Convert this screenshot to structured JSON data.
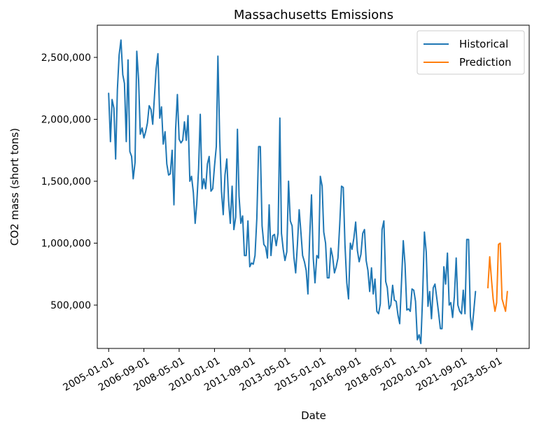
{
  "chart_data": {
    "type": "line",
    "title": "Massachusetts Emissions",
    "xlabel": "Date",
    "ylabel": "CO2 mass (short tons)",
    "x_ticks": [
      "2005-01-01",
      "2006-09-01",
      "2008-05-01",
      "2010-01-01",
      "2011-09-01",
      "2013-05-01",
      "2015-01-01",
      "2016-09-01",
      "2018-05-01",
      "2020-01-01",
      "2021-09-01",
      "2023-05-01"
    ],
    "y_ticks": [
      500000,
      1000000,
      1500000,
      2000000,
      2500000
    ],
    "y_tick_labels": [
      "500,000",
      "1,000,000",
      "1,500,000",
      "2,000,000",
      "2,500,000"
    ],
    "xlim": [
      "2004-06-19",
      "2024-11-12"
    ],
    "ylim": [
      150000,
      2760000
    ],
    "grid": false,
    "legend_position": "top-right",
    "series": [
      {
        "name": "Historical",
        "color": "#1f77b4",
        "start": "2005-01",
        "values": [
          2210000,
          1820000,
          2160000,
          2090000,
          1680000,
          2240000,
          2520000,
          2640000,
          2360000,
          2290000,
          1820000,
          2480000,
          1740000,
          1700000,
          1520000,
          1650000,
          2550000,
          2320000,
          1880000,
          1930000,
          1850000,
          1900000,
          1970000,
          2110000,
          2080000,
          1960000,
          2180000,
          2410000,
          2530000,
          2010000,
          2100000,
          1800000,
          1900000,
          1640000,
          1550000,
          1560000,
          1750000,
          1310000,
          1920000,
          2200000,
          1840000,
          1810000,
          1830000,
          1980000,
          1830000,
          2030000,
          1500000,
          1540000,
          1410000,
          1160000,
          1320000,
          1600000,
          2040000,
          1440000,
          1520000,
          1440000,
          1640000,
          1700000,
          1420000,
          1440000,
          1620000,
          1780000,
          2510000,
          1840000,
          1420000,
          1230000,
          1550000,
          1680000,
          1340000,
          1160000,
          1460000,
          1110000,
          1210000,
          1920000,
          1380000,
          1160000,
          1220000,
          900000,
          900000,
          1180000,
          810000,
          840000,
          830000,
          900000,
          1200000,
          1780000,
          1780000,
          1140000,
          990000,
          970000,
          880000,
          1310000,
          900000,
          1060000,
          1070000,
          980000,
          1080000,
          2010000,
          1080000,
          950000,
          860000,
          930000,
          1500000,
          1180000,
          1140000,
          890000,
          760000,
          990000,
          1270000,
          1080000,
          900000,
          850000,
          780000,
          590000,
          1050000,
          1390000,
          880000,
          680000,
          900000,
          880000,
          1540000,
          1460000,
          1090000,
          1000000,
          720000,
          720000,
          960000,
          890000,
          760000,
          810000,
          880000,
          1150000,
          1460000,
          1450000,
          990000,
          680000,
          550000,
          1000000,
          950000,
          1040000,
          1170000,
          940000,
          850000,
          910000,
          1080000,
          1110000,
          860000,
          780000,
          610000,
          800000,
          590000,
          710000,
          450000,
          430000,
          510000,
          1110000,
          1180000,
          690000,
          640000,
          470000,
          500000,
          660000,
          540000,
          530000,
          420000,
          350000,
          690000,
          1020000,
          830000,
          460000,
          470000,
          450000,
          630000,
          620000,
          530000,
          220000,
          260000,
          190000,
          580000,
          1090000,
          930000,
          490000,
          610000,
          390000,
          640000,
          670000,
          560000,
          440000,
          310000,
          310000,
          810000,
          670000,
          920000,
          500000,
          520000,
          400000,
          570000,
          880000,
          500000,
          450000,
          430000,
          620000,
          430000,
          1030000,
          1030000,
          410000,
          300000,
          450000,
          610000
        ]
      },
      {
        "name": "Prediction",
        "color": "#ff7f0e",
        "start": "2022-12",
        "values": [
          640000,
          890000,
          700000,
          550000,
          450000,
          520000,
          990000,
          1000000,
          550000,
          500000,
          450000,
          610000
        ]
      }
    ]
  }
}
